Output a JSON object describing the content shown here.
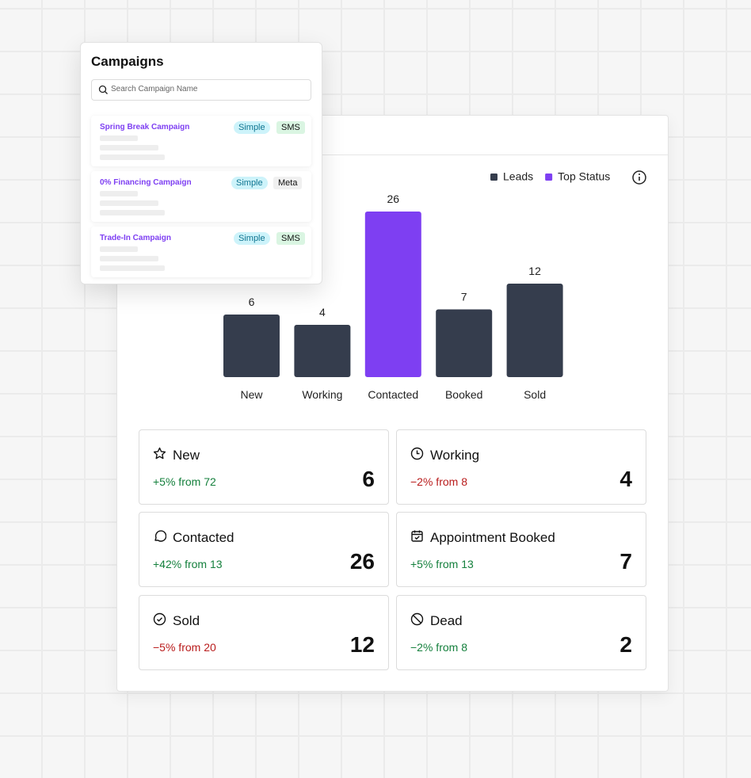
{
  "campaigns": {
    "title": "Campaigns",
    "search_placeholder": "Search Campaign Name",
    "items": [
      {
        "name": "Spring Break Campaign",
        "tags": [
          "Simple",
          "SMS"
        ]
      },
      {
        "name": "0% Financing Campaign",
        "tags": [
          "Simple",
          "Meta"
        ]
      },
      {
        "name": "Trade-In Campaign",
        "tags": [
          "Simple",
          "SMS"
        ]
      }
    ]
  },
  "chart_data": {
    "type": "bar",
    "legend": [
      {
        "name": "Leads",
        "color": "#353d4d"
      },
      {
        "name": "Top Status",
        "color": "#7e3ff2"
      }
    ],
    "categories": [
      "New",
      "Working",
      "Contacted",
      "Booked",
      "Sold"
    ],
    "values": [
      6,
      4,
      26,
      7,
      12
    ],
    "colors": [
      "#353d4d",
      "#353d4d",
      "#7e3ff2",
      "#353d4d",
      "#353d4d"
    ]
  },
  "stats": [
    {
      "title": "New",
      "change": "+5% from 72",
      "change_color": "#15803d",
      "value": 6
    },
    {
      "title": "Working",
      "change": "−2% from 8",
      "change_color": "#b91c1c",
      "value": 4
    },
    {
      "title": "Contacted",
      "change": "+42% from 13",
      "change_color": "#15803d",
      "value": 26
    },
    {
      "title": "Appointment Booked",
      "change": "+5% from 13",
      "change_color": "#15803d",
      "value": 7
    },
    {
      "title": "Sold",
      "change": "−5% from 20",
      "change_color": "#b91c1c",
      "value": 12
    },
    {
      "title": "Dead",
      "change": "−2% from 8",
      "change_color": "#15803d",
      "value": 2
    }
  ]
}
